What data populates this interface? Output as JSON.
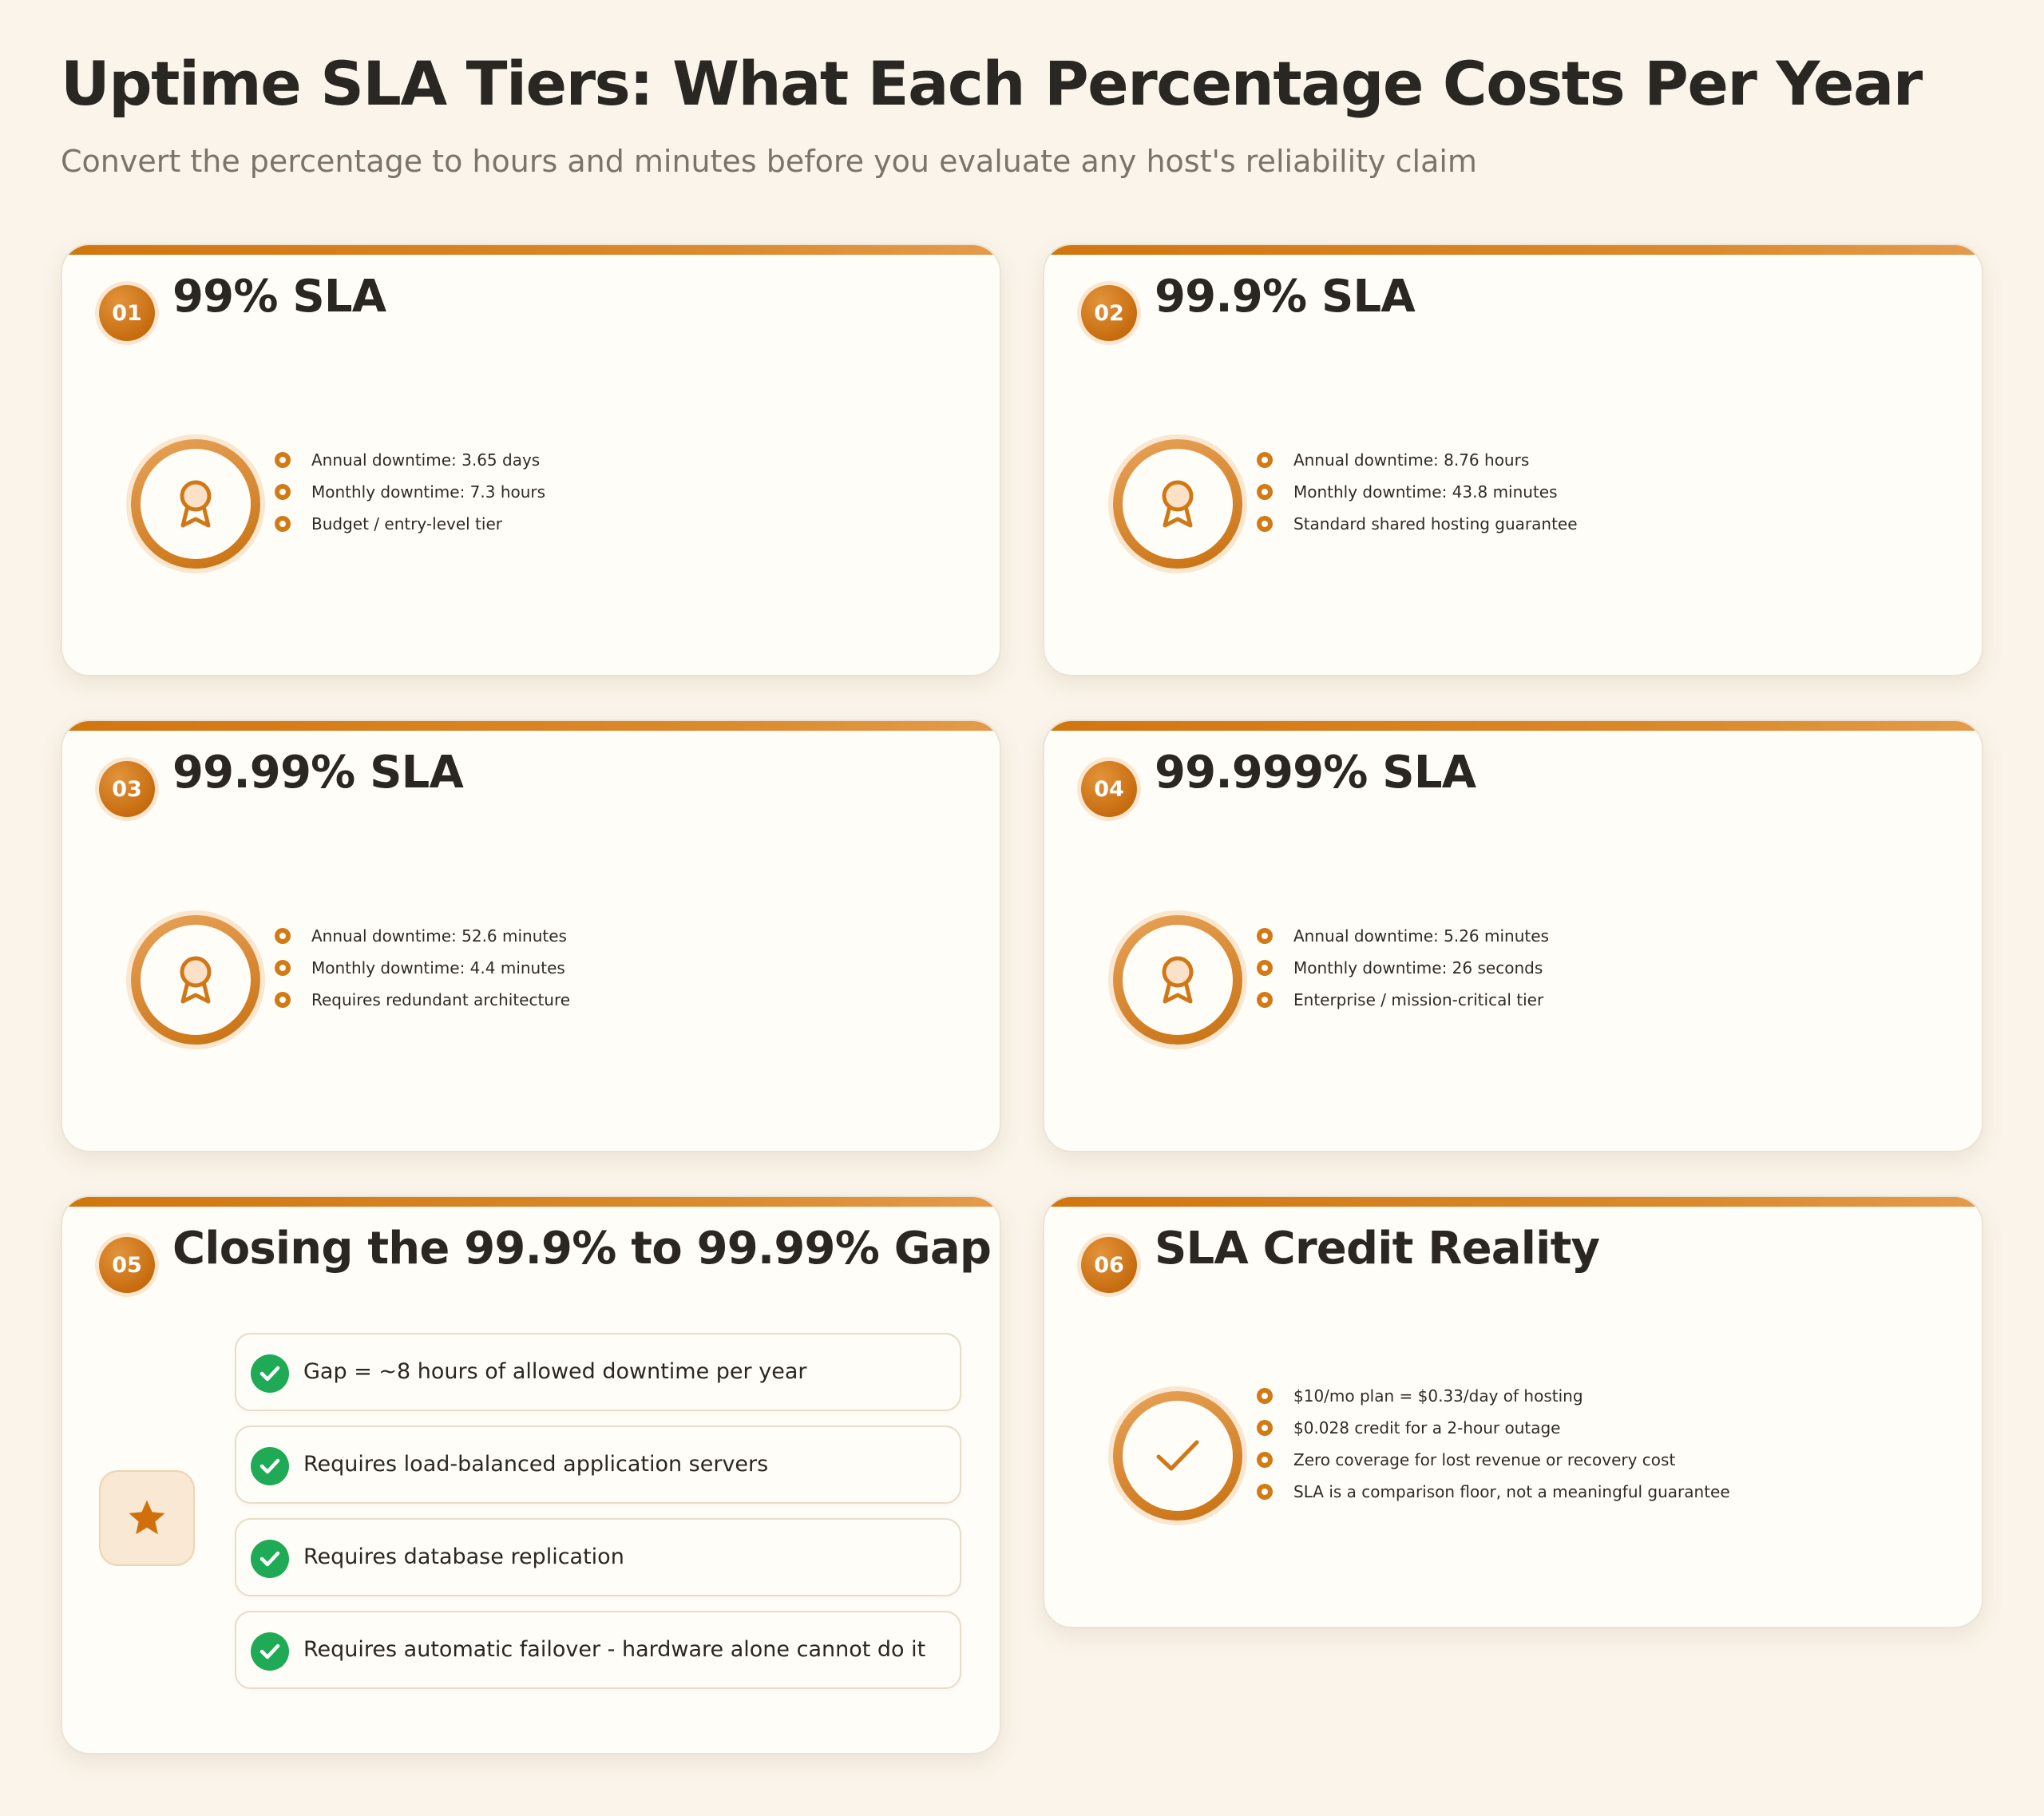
{
  "header": {
    "title": "Uptime SLA Tiers: What Each Percentage Costs Per Year",
    "subtitle": "Convert the percentage to hours and minutes before you evaluate any host's reliability claim"
  },
  "cards": [
    {
      "number": "01",
      "title": "99% SLA",
      "icon": "award-ribbon-icon",
      "bullets": [
        "Annual downtime: 3.65 days",
        "Monthly downtime: 7.3 hours",
        "Budget / entry-level tier"
      ]
    },
    {
      "number": "02",
      "title": "99.9% SLA",
      "icon": "award-ribbon-icon",
      "bullets": [
        "Annual downtime: 8.76 hours",
        "Monthly downtime: 43.8 minutes",
        "Standard shared hosting guarantee"
      ]
    },
    {
      "number": "03",
      "title": "99.99% SLA",
      "icon": "award-ribbon-icon",
      "bullets": [
        "Annual downtime: 52.6 minutes",
        "Monthly downtime: 4.4 minutes",
        "Requires redundant architecture"
      ]
    },
    {
      "number": "04",
      "title": "99.999% SLA",
      "icon": "award-ribbon-icon",
      "bullets": [
        "Annual downtime: 5.26 minutes",
        "Monthly downtime: 26 seconds",
        "Enterprise / mission-critical tier"
      ]
    },
    {
      "number": "05",
      "title": "Closing the 99.9% to 99.99% Gap",
      "icon": "star-icon",
      "checks": [
        "Gap = ~8 hours of allowed downtime per year",
        "Requires load-balanced application servers",
        "Requires database replication",
        "Requires automatic failover - hardware alone cannot do it"
      ]
    },
    {
      "number": "06",
      "title": "SLA Credit Reality",
      "icon": "checkmark-icon",
      "bullets": [
        "$10/mo plan = $0.33/day of hosting",
        "$0.028 credit for a 2-hour outage",
        "Zero coverage for lost revenue or recovery cost",
        "SLA is a comparison floor, not a meaningful guarantee"
      ]
    }
  ],
  "colors": {
    "background": "#faf4ea",
    "accent": "#d2760f",
    "check_green": "#1faa55",
    "text": "#2a2723",
    "muted": "#7b746b"
  }
}
